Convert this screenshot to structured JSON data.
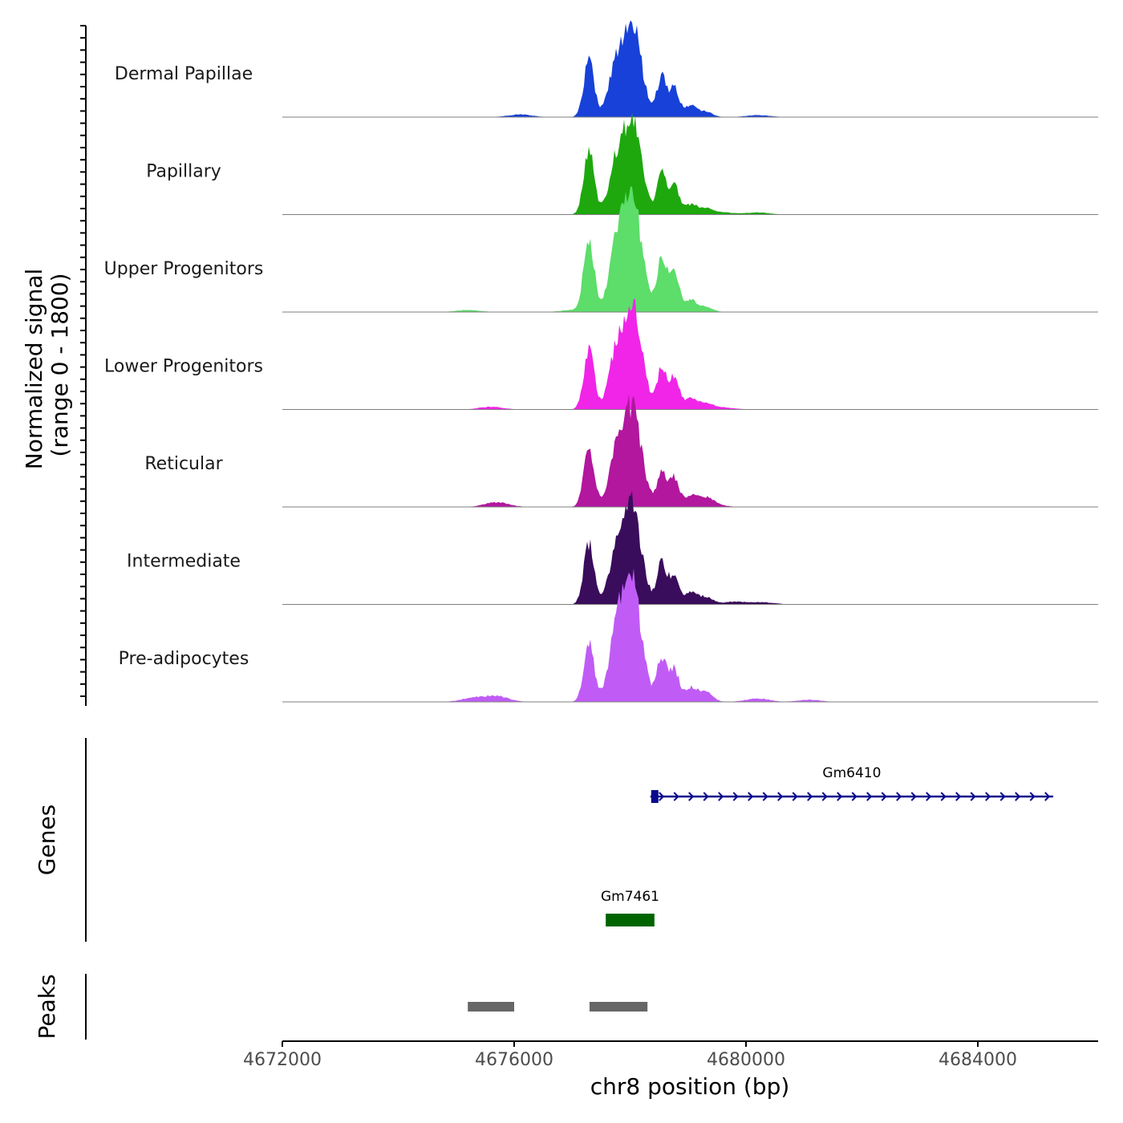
{
  "chart_data": {
    "type": "area",
    "chromosome": "chr8",
    "region": [
      4672000,
      4686000
    ],
    "y_axis_title_line1": "Normalized signal",
    "y_axis_title_line2": "(range 0 - 1800)",
    "ylim": [
      0,
      1800
    ],
    "x_axis_title": "chr8 position (bp)",
    "x_ticks": [
      4672000,
      4676000,
      4680000,
      4684000
    ],
    "x_tick_labels": [
      "4672000",
      "4676000",
      "4680000",
      "4684000"
    ],
    "peak_shape": {
      "centers": [
        4677290,
        4677660,
        4677830,
        4678040,
        4678180,
        4678540,
        4678760,
        4679050,
        4679300
      ],
      "widths": [
        90,
        80,
        150,
        100,
        120,
        80,
        90,
        100,
        120
      ]
    },
    "tracks": [
      {
        "name": "Dermal Papillae",
        "color": "#1741d8",
        "amplitudes": [
          820,
          60,
          1000,
          840,
          520,
          570,
          420,
          160,
          80
        ],
        "background": [
          [
            4676100,
            40
          ],
          [
            4680200,
            30
          ]
        ]
      },
      {
        "name": "Papillary",
        "color": "#1ea80e",
        "amplitudes": [
          950,
          40,
          1000,
          820,
          520,
          580,
          420,
          140,
          90
        ],
        "background": [
          [
            4679600,
            30
          ],
          [
            4680200,
            30
          ]
        ]
      },
      {
        "name": "Upper Progenitors",
        "color": "#5ddd6a",
        "amplitudes": [
          1080,
          60,
          1260,
          980,
          650,
          800,
          580,
          170,
          80
        ],
        "background": [
          [
            4675200,
            30
          ],
          [
            4677000,
            30
          ]
        ]
      },
      {
        "name": "Lower Progenitors",
        "color": "#f025e8",
        "amplitudes": [
          880,
          60,
          1100,
          880,
          600,
          580,
          470,
          160,
          90
        ],
        "background": [
          [
            4675600,
            40
          ],
          [
            4679600,
            30
          ]
        ]
      },
      {
        "name": "Reticular",
        "color": "#b2179e",
        "amplitudes": [
          860,
          60,
          1000,
          850,
          560,
          500,
          420,
          160,
          110
        ],
        "background": [
          [
            4675700,
            70
          ],
          [
            4679400,
            40
          ]
        ]
      },
      {
        "name": "Intermediate",
        "color": "#3a0c5c",
        "amplitudes": [
          880,
          60,
          960,
          850,
          520,
          600,
          440,
          160,
          110
        ],
        "background": [
          [
            4679800,
            40
          ],
          [
            4680300,
            30
          ]
        ]
      },
      {
        "name": "Pre-adipocytes",
        "color": "#c05cf5",
        "amplitudes": [
          850,
          60,
          1350,
          1100,
          640,
          650,
          470,
          200,
          150
        ],
        "background": [
          [
            4675700,
            80
          ],
          [
            4675300,
            60
          ],
          [
            4680200,
            50
          ],
          [
            4681100,
            30
          ]
        ]
      }
    ],
    "genes_panel_label": "Genes",
    "genes": [
      {
        "name": "Gm6410",
        "start": 4678350,
        "end": 4685300,
        "strand": "+",
        "color": "#0a0a8c"
      },
      {
        "name": "Gm7461",
        "start": 4677580,
        "end": 4678420,
        "strand": "+",
        "color": "#006400"
      }
    ],
    "peaks_panel_label": "Peaks",
    "peaks": [
      {
        "start": 4675200,
        "end": 4676000,
        "color": "#666666"
      },
      {
        "start": 4677300,
        "end": 4678300,
        "color": "#666666"
      }
    ]
  }
}
